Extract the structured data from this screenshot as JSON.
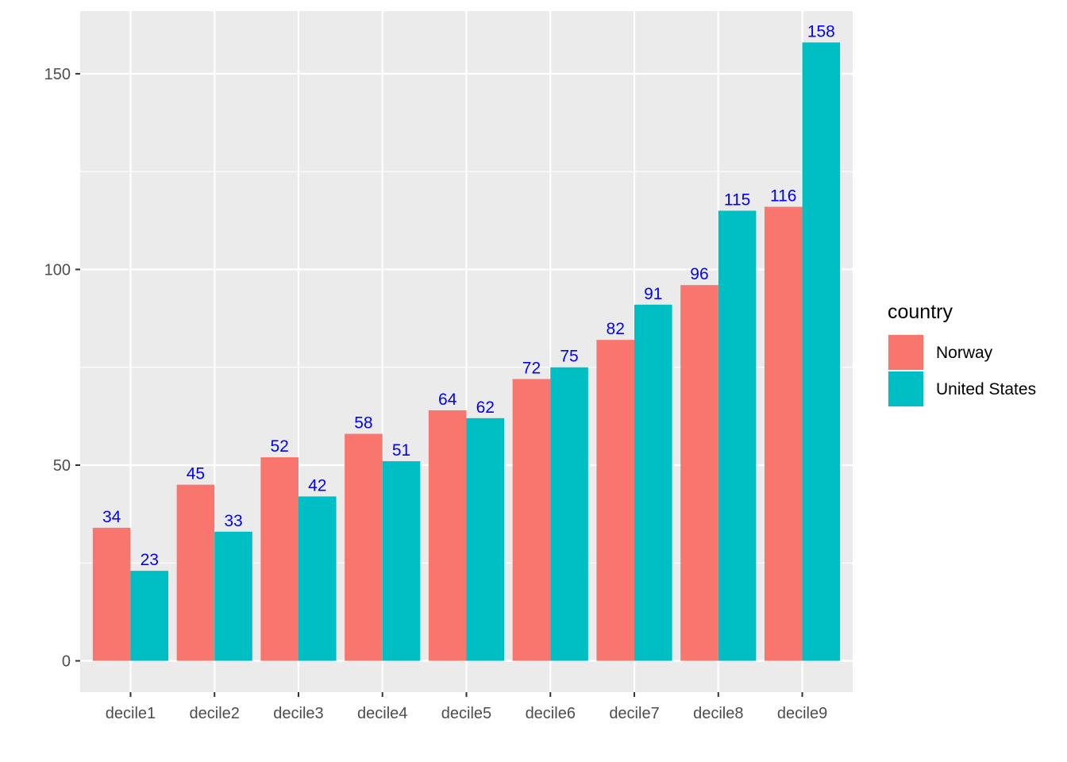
{
  "chart_data": {
    "type": "bar",
    "categories": [
      "decile1",
      "decile2",
      "decile3",
      "decile4",
      "decile5",
      "decile6",
      "decile7",
      "decile8",
      "decile9"
    ],
    "series": [
      {
        "name": "Norway",
        "values": [
          34,
          45,
          52,
          58,
          64,
          72,
          82,
          96,
          116
        ],
        "labels": [
          "34",
          "45",
          "52",
          "58",
          "64",
          "72",
          "82",
          "96",
          "116"
        ],
        "color": "#F8766D"
      },
      {
        "name": "United States",
        "values": [
          23,
          33,
          42,
          51,
          62,
          75,
          91,
          115,
          158
        ],
        "labels": [
          "23",
          "33",
          "42",
          "51",
          "62",
          "75",
          "91",
          "115",
          "158"
        ],
        "color": "#00BFC4"
      }
    ],
    "title": "",
    "xlabel": "",
    "ylabel": "",
    "ylim": [
      -8,
      166
    ],
    "yticks": [
      0,
      50,
      100,
      150
    ],
    "ytick_labels": [
      "0",
      "50",
      "100",
      "150"
    ],
    "grid": true,
    "legend": {
      "title": "country",
      "position": "right"
    },
    "colors": {
      "panel_background": "#EBEBEB",
      "grid": "#FFFFFF",
      "data_label": "#0000FF",
      "tick_label": "#4D4D4D",
      "tick_mark": "#333333"
    }
  }
}
